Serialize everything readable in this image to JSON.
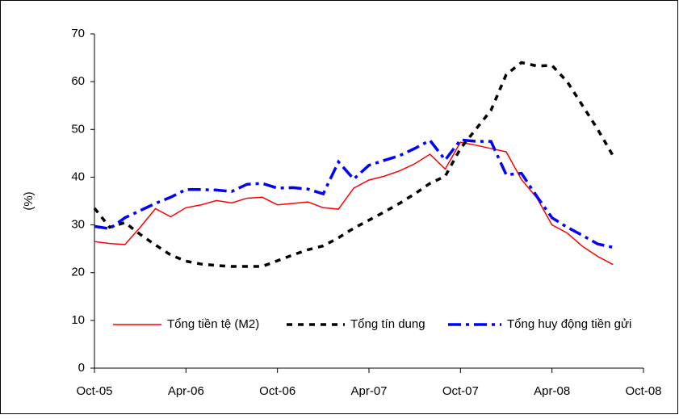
{
  "chart_data": {
    "type": "line",
    "y_label": "(%)",
    "categories": [
      "Oct-05",
      null,
      null,
      null,
      null,
      null,
      "Apr-06",
      null,
      null,
      null,
      null,
      null,
      "Oct-06",
      null,
      null,
      null,
      null,
      null,
      "Apr-07",
      null,
      null,
      null,
      null,
      null,
      "Oct-07",
      null,
      null,
      null,
      null,
      null,
      "Apr-08",
      null,
      null,
      null,
      null,
      null,
      "Oct-08"
    ],
    "series": [
      {
        "name": "Tổng tiền tệ (M2)",
        "color": "#ff0000",
        "style": "solid",
        "values": [
          26.5,
          26.1,
          25.9,
          29.5,
          33.4,
          31.7,
          33.6,
          34.2,
          35.1,
          34.6,
          35.6,
          35.8,
          34.2,
          34.5,
          34.8,
          33.6,
          33.3,
          37.7,
          39.4,
          40.2,
          41.3,
          42.8,
          44.8,
          41.7,
          47.3,
          46.7,
          46.0,
          45.3,
          39.5,
          35.7,
          30.0,
          28.3,
          25.5,
          23.4,
          21.7,
          null,
          null
        ]
      },
      {
        "name": "Tổng tín dung",
        "color": "#000000",
        "style": "dashed",
        "values": [
          33.5,
          29.5,
          30.5,
          28.0,
          25.8,
          23.7,
          22.4,
          21.8,
          21.5,
          21.3,
          21.3,
          21.3,
          22.5,
          23.7,
          24.8,
          25.6,
          27.3,
          29.3,
          31.0,
          32.7,
          34.5,
          36.5,
          38.7,
          40.2,
          46.0,
          50.0,
          54.0,
          61.5,
          64.0,
          63.3,
          63.4,
          60.0,
          55.0,
          50.0,
          44.5,
          null,
          null
        ]
      },
      {
        "name": "Tổng huy động tiền gửi",
        "color": "#0000ff",
        "style": "dashdot",
        "values": [
          29.7,
          29.2,
          31.5,
          33.0,
          34.5,
          35.8,
          37.4,
          37.4,
          37.3,
          37.0,
          38.5,
          38.7,
          37.7,
          37.8,
          37.5,
          36.5,
          43.2,
          39.6,
          42.5,
          43.5,
          44.5,
          46.0,
          47.7,
          43.6,
          47.8,
          47.5,
          47.5,
          40.5,
          40.8,
          36.0,
          31.5,
          29.5,
          27.8,
          26.0,
          25.3,
          null,
          null
        ]
      }
    ],
    "ylim": [
      0,
      70
    ],
    "yticks": [
      0,
      10,
      20,
      30,
      40,
      50,
      60,
      70
    ],
    "grid": false,
    "legend": "bottom"
  }
}
